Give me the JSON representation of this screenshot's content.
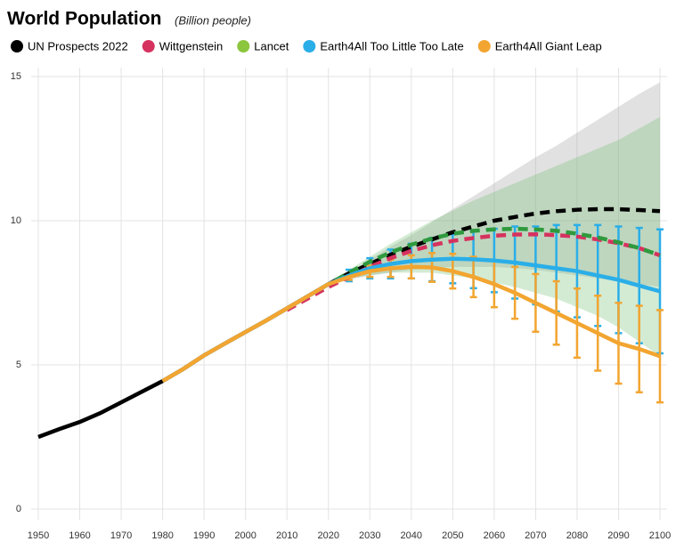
{
  "chart_data": {
    "type": "line",
    "title": "World Population",
    "subtitle": "(Billion people)",
    "x": [
      1950,
      1955,
      1960,
      1965,
      1970,
      1975,
      1980,
      1985,
      1990,
      1995,
      2000,
      2005,
      2010,
      2015,
      2020,
      2025,
      2030,
      2035,
      2040,
      2045,
      2050,
      2055,
      2060,
      2065,
      2070,
      2075,
      2080,
      2085,
      2090,
      2095,
      2100
    ],
    "xlim": [
      1950,
      2100
    ],
    "xticks": [
      1950,
      1960,
      1970,
      1980,
      1990,
      2000,
      2010,
      2020,
      2030,
      2040,
      2050,
      2060,
      2070,
      2080,
      2090,
      2100
    ],
    "ylim": [
      0,
      15
    ],
    "yticks": [
      0,
      5,
      10,
      15
    ],
    "grid": true,
    "series": [
      {
        "name": "UN Prospects 2022",
        "color": "#000000",
        "dash_from": 2020,
        "band_color": "rgba(170,170,170,0.35)",
        "values": [
          2.5,
          2.77,
          3.02,
          3.33,
          3.7,
          4.07,
          4.44,
          4.86,
          5.33,
          5.74,
          6.14,
          6.54,
          6.96,
          7.38,
          7.8,
          8.18,
          8.5,
          8.82,
          9.1,
          9.35,
          9.6,
          9.8,
          10.0,
          10.13,
          10.25,
          10.33,
          10.38,
          10.4,
          10.4,
          10.37,
          10.33
        ],
        "band_lower": [
          null,
          null,
          null,
          null,
          null,
          null,
          null,
          null,
          null,
          null,
          null,
          null,
          null,
          null,
          7.8,
          7.95,
          8.1,
          8.2,
          8.3,
          8.35,
          8.4,
          8.4,
          8.4,
          8.35,
          8.3,
          8.2,
          8.1,
          8.0,
          7.9,
          7.8,
          7.7
        ],
        "band_upper": [
          null,
          null,
          null,
          null,
          null,
          null,
          null,
          null,
          null,
          null,
          null,
          null,
          null,
          null,
          7.8,
          8.2,
          8.65,
          9.1,
          9.5,
          9.95,
          10.4,
          10.85,
          11.3,
          11.75,
          12.2,
          12.6,
          13.05,
          13.5,
          13.95,
          14.4,
          14.8
        ]
      },
      {
        "name": "Wittgenstein",
        "color": "#d6325f",
        "dash_from": 2010,
        "values": [
          null,
          null,
          null,
          null,
          null,
          null,
          null,
          null,
          null,
          null,
          null,
          null,
          6.9,
          7.3,
          7.7,
          8.05,
          8.4,
          8.7,
          8.95,
          9.15,
          9.3,
          9.4,
          9.48,
          9.52,
          9.53,
          9.5,
          9.45,
          9.35,
          9.22,
          9.05,
          8.8
        ]
      },
      {
        "name": "Lancet",
        "color": "#2f9a3e",
        "legend_color": "#8cc63f",
        "dash_from": 2015,
        "band_color": "rgba(110,190,110,0.3)",
        "values": [
          null,
          null,
          null,
          null,
          null,
          null,
          null,
          null,
          null,
          null,
          null,
          null,
          null,
          7.38,
          7.8,
          8.2,
          8.58,
          8.9,
          9.17,
          9.38,
          9.55,
          9.65,
          9.7,
          9.72,
          9.7,
          9.65,
          9.55,
          9.42,
          9.25,
          9.05,
          8.8
        ],
        "band_lower": [
          null,
          null,
          null,
          null,
          null,
          null,
          null,
          null,
          null,
          null,
          null,
          null,
          null,
          null,
          7.8,
          8.0,
          8.1,
          8.2,
          8.2,
          8.2,
          8.1,
          8.0,
          7.85,
          7.7,
          7.5,
          7.3,
          7.0,
          6.7,
          6.3,
          5.8,
          5.3
        ],
        "band_upper": [
          null,
          null,
          null,
          null,
          null,
          null,
          null,
          null,
          null,
          null,
          null,
          null,
          null,
          null,
          7.8,
          8.3,
          8.75,
          9.2,
          9.6,
          10.0,
          10.35,
          10.7,
          11.0,
          11.3,
          11.6,
          11.9,
          12.2,
          12.5,
          12.8,
          13.2,
          13.6
        ]
      },
      {
        "name": "Earth4All Too Little Too Late",
        "color": "#2aaee8",
        "values": [
          null,
          null,
          null,
          null,
          null,
          null,
          4.44,
          4.86,
          5.33,
          5.74,
          6.14,
          6.54,
          6.96,
          7.38,
          7.8,
          8.1,
          8.35,
          8.5,
          8.6,
          8.65,
          8.68,
          8.66,
          8.62,
          8.55,
          8.45,
          8.35,
          8.25,
          8.1,
          7.95,
          7.75,
          7.55
        ],
        "errors": [
          null,
          null,
          null,
          null,
          null,
          null,
          null,
          null,
          null,
          null,
          null,
          null,
          null,
          null,
          null,
          0.2,
          0.35,
          0.5,
          0.6,
          0.75,
          0.85,
          1.0,
          1.1,
          1.25,
          1.35,
          1.5,
          1.6,
          1.75,
          1.85,
          2.0,
          2.15
        ]
      },
      {
        "name": "Earth4All Giant Leap",
        "color": "#f2a530",
        "values": [
          null,
          null,
          null,
          null,
          null,
          null,
          4.44,
          4.86,
          5.33,
          5.74,
          6.14,
          6.54,
          6.96,
          7.38,
          7.8,
          8.05,
          8.25,
          8.35,
          8.4,
          8.38,
          8.25,
          8.05,
          7.8,
          7.5,
          7.15,
          6.8,
          6.45,
          6.1,
          5.75,
          5.55,
          5.3
        ],
        "errors": [
          null,
          null,
          null,
          null,
          null,
          null,
          null,
          null,
          null,
          null,
          null,
          null,
          null,
          null,
          null,
          0.1,
          0.2,
          0.3,
          0.4,
          0.5,
          0.6,
          0.7,
          0.8,
          0.9,
          1.0,
          1.1,
          1.2,
          1.3,
          1.4,
          1.5,
          1.6
        ]
      }
    ]
  }
}
